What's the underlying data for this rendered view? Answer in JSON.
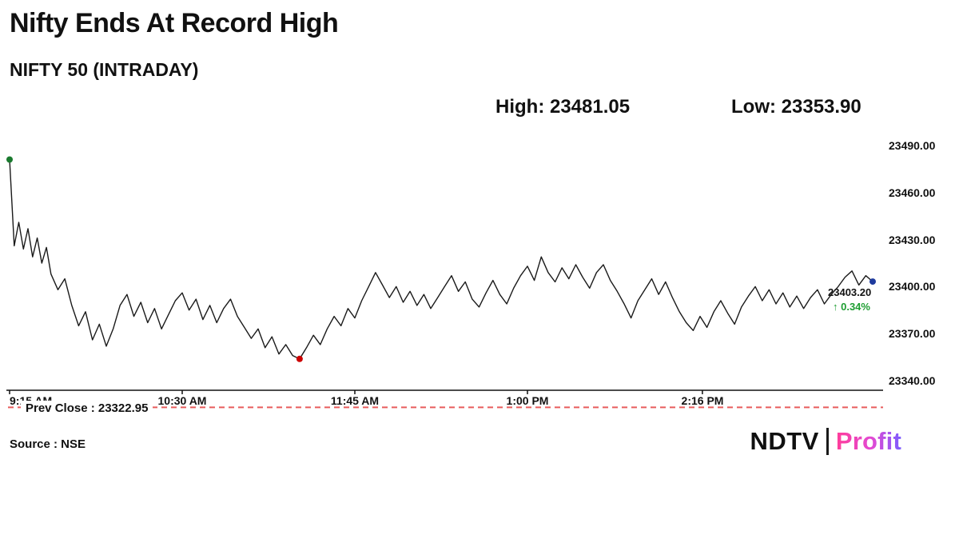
{
  "title": "Nifty Ends At Record High",
  "subtitle": "NIFTY 50 (INTRADAY)",
  "stats": {
    "high_label": "High: 23481.05",
    "low_label": "Low: 23353.90"
  },
  "footer": {
    "source": "Source : NSE",
    "logo_ndtv": "NDTV",
    "logo_profit": "Profit"
  },
  "chart_data": {
    "type": "line",
    "title": "NIFTY 50 (INTRADAY)",
    "x_unit": "minutes since 9:15 AM",
    "x_range": [
      0,
      375
    ],
    "y_range": [
      23340,
      23490
    ],
    "grid": false,
    "legend": "none",
    "y_tick_values": [
      23490,
      23460,
      23430,
      23400,
      23370,
      23340
    ],
    "y_tick_labels": [
      "23490.00",
      "23460.00",
      "23430.00",
      "23400.00",
      "23370.00",
      "23340.00"
    ],
    "x_tick_minutes": [
      0,
      75,
      150,
      225,
      301
    ],
    "x_tick_labels": [
      "9:15 AM",
      "10:30 AM",
      "11:45 AM",
      "1:00 PM",
      "2:16 PM"
    ],
    "open": 23481.05,
    "high": 23481.05,
    "low": 23353.9,
    "last": 23403.2,
    "prev_close": 23322.95,
    "prev_close_label": "Prev Close : 23322.95",
    "last_label": "23403.20",
    "change_label": "↑ 0.34%",
    "line_color": "#1a1a1a",
    "axis_color": "#111111",
    "prev_close_color": "#e85c5c",
    "change_color": "#1e9e32",
    "marker_colors": {
      "open": "#1a7a2e",
      "low": "#cc0000",
      "last": "#1f3b9e"
    },
    "series": [
      [
        0,
        23481.05
      ],
      [
        2,
        23426
      ],
      [
        4,
        23441
      ],
      [
        6,
        23424
      ],
      [
        8,
        23437
      ],
      [
        10,
        23419
      ],
      [
        12,
        23431
      ],
      [
        14,
        23415
      ],
      [
        16,
        23425
      ],
      [
        18,
        23408
      ],
      [
        21,
        23398
      ],
      [
        24,
        23405
      ],
      [
        27,
        23388
      ],
      [
        30,
        23375
      ],
      [
        33,
        23384
      ],
      [
        36,
        23366
      ],
      [
        39,
        23376
      ],
      [
        42,
        23362
      ],
      [
        45,
        23373
      ],
      [
        48,
        23388
      ],
      [
        51,
        23395
      ],
      [
        54,
        23381
      ],
      [
        57,
        23390
      ],
      [
        60,
        23377
      ],
      [
        63,
        23386
      ],
      [
        66,
        23373
      ],
      [
        69,
        23382
      ],
      [
        72,
        23391
      ],
      [
        75,
        23396
      ],
      [
        78,
        23385
      ],
      [
        81,
        23392
      ],
      [
        84,
        23379
      ],
      [
        87,
        23388
      ],
      [
        90,
        23377
      ],
      [
        93,
        23386
      ],
      [
        96,
        23392
      ],
      [
        99,
        23381
      ],
      [
        102,
        23374
      ],
      [
        105,
        23367
      ],
      [
        108,
        23373
      ],
      [
        111,
        23361
      ],
      [
        114,
        23368
      ],
      [
        117,
        23357
      ],
      [
        120,
        23363
      ],
      [
        123,
        23356
      ],
      [
        126,
        23353.9
      ],
      [
        129,
        23361
      ],
      [
        132,
        23369
      ],
      [
        135,
        23363
      ],
      [
        138,
        23373
      ],
      [
        141,
        23381
      ],
      [
        144,
        23375
      ],
      [
        147,
        23386
      ],
      [
        150,
        23380
      ],
      [
        153,
        23391
      ],
      [
        156,
        23400
      ],
      [
        159,
        23409
      ],
      [
        162,
        23401
      ],
      [
        165,
        23393
      ],
      [
        168,
        23400
      ],
      [
        171,
        23390
      ],
      [
        174,
        23397
      ],
      [
        177,
        23388
      ],
      [
        180,
        23395
      ],
      [
        183,
        23386
      ],
      [
        186,
        23393
      ],
      [
        189,
        23400
      ],
      [
        192,
        23407
      ],
      [
        195,
        23397
      ],
      [
        198,
        23403
      ],
      [
        201,
        23392
      ],
      [
        204,
        23387
      ],
      [
        207,
        23396
      ],
      [
        210,
        23404
      ],
      [
        213,
        23395
      ],
      [
        216,
        23389
      ],
      [
        219,
        23399
      ],
      [
        222,
        23407
      ],
      [
        225,
        23413
      ],
      [
        228,
        23404
      ],
      [
        231,
        23419
      ],
      [
        234,
        23409
      ],
      [
        237,
        23403
      ],
      [
        240,
        23412
      ],
      [
        243,
        23405
      ],
      [
        246,
        23414
      ],
      [
        249,
        23406
      ],
      [
        252,
        23399
      ],
      [
        255,
        23409
      ],
      [
        258,
        23414
      ],
      [
        261,
        23404
      ],
      [
        264,
        23397
      ],
      [
        267,
        23389
      ],
      [
        270,
        23380
      ],
      [
        273,
        23391
      ],
      [
        276,
        23398
      ],
      [
        279,
        23405
      ],
      [
        282,
        23395
      ],
      [
        285,
        23403
      ],
      [
        288,
        23393
      ],
      [
        291,
        23384
      ],
      [
        294,
        23377
      ],
      [
        297,
        23372
      ],
      [
        300,
        23381
      ],
      [
        303,
        23374
      ],
      [
        306,
        23384
      ],
      [
        309,
        23391
      ],
      [
        312,
        23383
      ],
      [
        315,
        23376
      ],
      [
        318,
        23387
      ],
      [
        321,
        23394
      ],
      [
        324,
        23400
      ],
      [
        327,
        23391
      ],
      [
        330,
        23398
      ],
      [
        333,
        23389
      ],
      [
        336,
        23396
      ],
      [
        339,
        23387
      ],
      [
        342,
        23394
      ],
      [
        345,
        23386
      ],
      [
        348,
        23393
      ],
      [
        351,
        23398
      ],
      [
        354,
        23389
      ],
      [
        357,
        23395
      ],
      [
        360,
        23400
      ],
      [
        363,
        23406
      ],
      [
        366,
        23410
      ],
      [
        369,
        23401
      ],
      [
        372,
        23407
      ],
      [
        375,
        23403.2
      ]
    ]
  }
}
